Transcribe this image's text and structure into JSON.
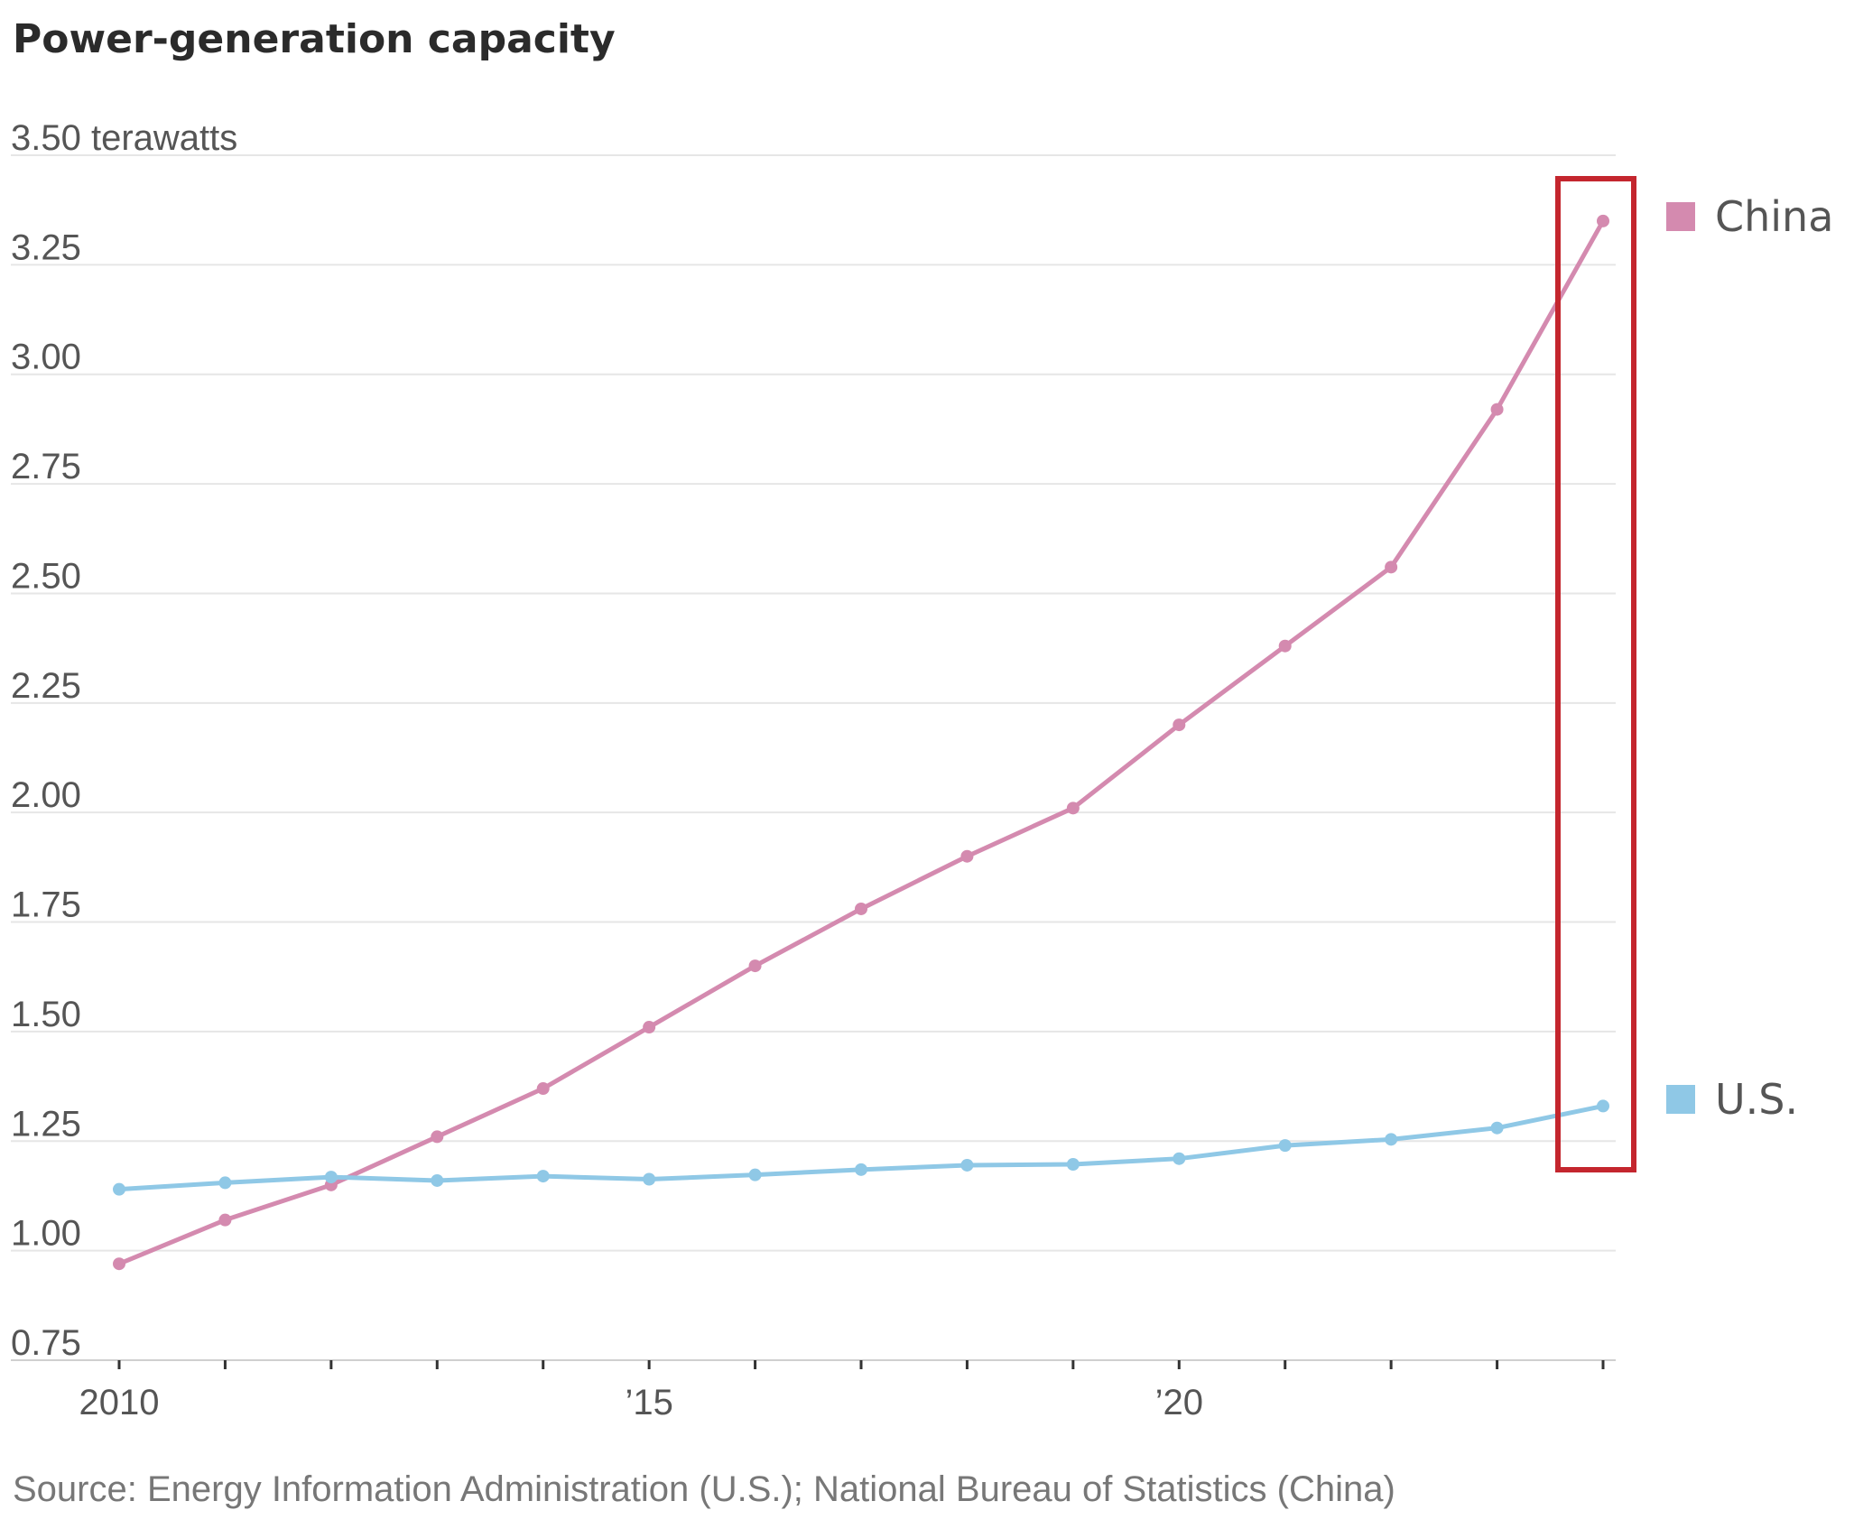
{
  "chart_data": {
    "type": "line",
    "title": "Power-generation capacity",
    "ylabel": "",
    "xlabel": "",
    "unit_label": "terawatts",
    "ylim": [
      0.75,
      3.5
    ],
    "yticks": [
      0.75,
      1.0,
      1.25,
      1.5,
      1.75,
      2.0,
      2.25,
      2.5,
      2.75,
      3.0,
      3.25,
      3.5
    ],
    "ytick_labels": [
      "0.75",
      "1.00",
      "1.25",
      "1.50",
      "1.75",
      "2.00",
      "2.25",
      "2.50",
      "2.75",
      "3.00",
      "3.25",
      "3.50 terawatts"
    ],
    "xlim": [
      2010,
      2024
    ],
    "xticks": [
      2010,
      2011,
      2012,
      2013,
      2014,
      2015,
      2016,
      2017,
      2018,
      2019,
      2020,
      2021,
      2022,
      2023,
      2024
    ],
    "xtick_labels": [
      {
        "x": 2010,
        "label": "2010"
      },
      {
        "x": 2015,
        "label": "’15"
      },
      {
        "x": 2020,
        "label": "’20"
      }
    ],
    "x": [
      2010,
      2011,
      2012,
      2013,
      2014,
      2015,
      2016,
      2017,
      2018,
      2019,
      2020,
      2021,
      2022,
      2023,
      2024
    ],
    "series": [
      {
        "name": "China",
        "color": "#d48aaf",
        "values": [
          0.97,
          1.07,
          1.15,
          1.26,
          1.37,
          1.51,
          1.65,
          1.78,
          1.9,
          2.01,
          2.2,
          2.38,
          2.56,
          2.92,
          3.35
        ]
      },
      {
        "name": "U.S.",
        "color": "#8fc8e6",
        "values": [
          1.14,
          1.155,
          1.168,
          1.16,
          1.17,
          1.163,
          1.173,
          1.185,
          1.195,
          1.197,
          1.21,
          1.24,
          1.254,
          1.28,
          1.33
        ]
      }
    ],
    "highlight": {
      "x": 2024,
      "color": "#c4262e"
    },
    "grid": "horizontal",
    "legend": "right, at line ends"
  },
  "source": "Source: Energy Information Administration (U.S.); National Bureau of Statistics (China)"
}
